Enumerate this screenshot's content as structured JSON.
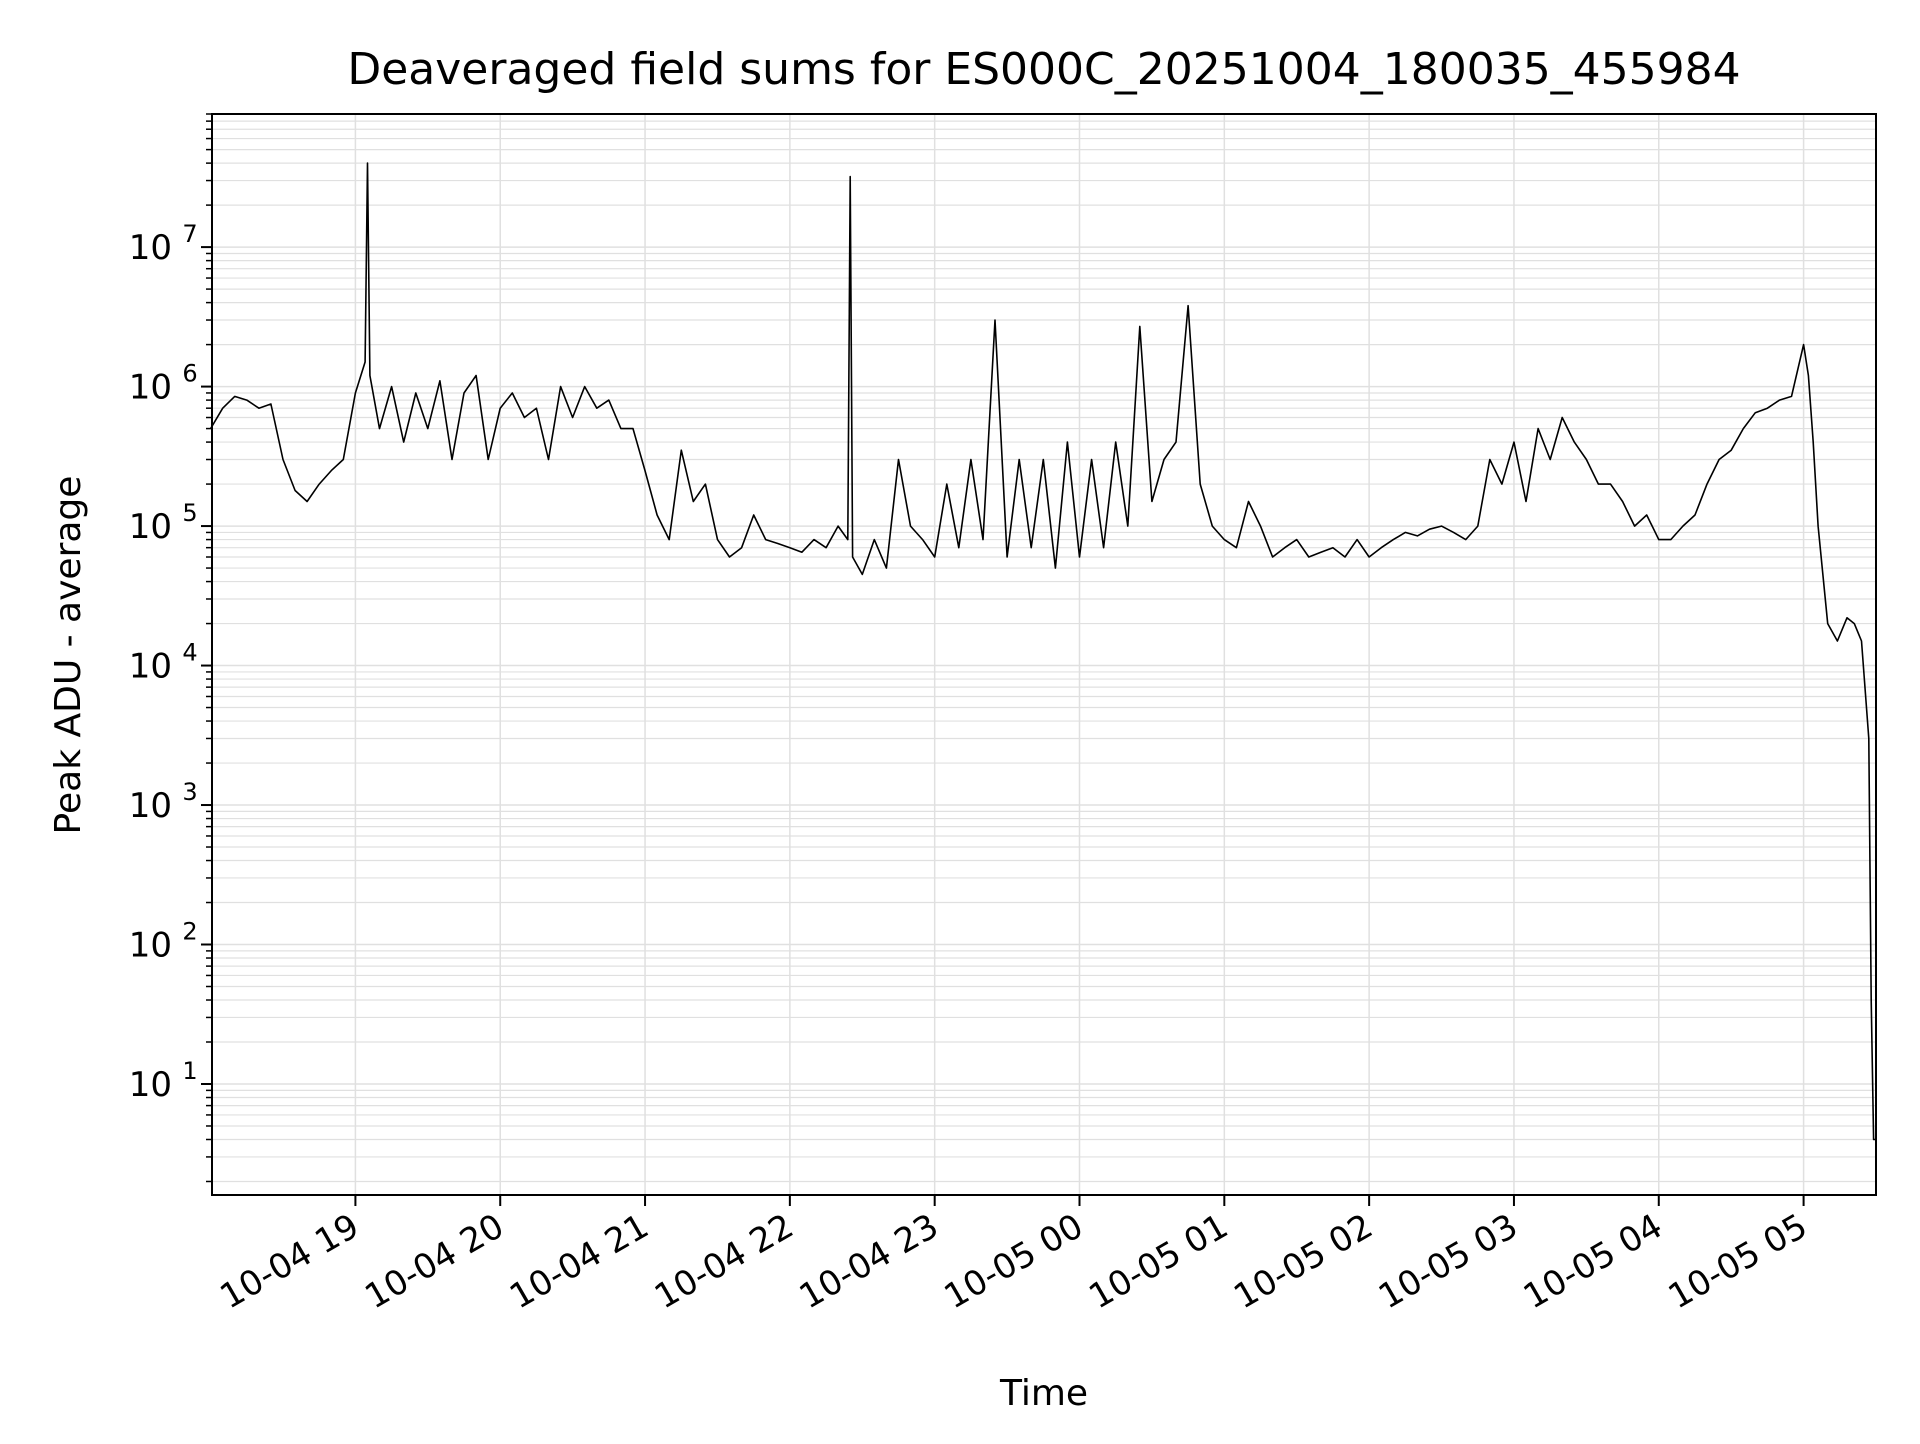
{
  "chart_data": {
    "type": "line",
    "title": "Deaveraged field sums for ES000C_20251004_180035_455984",
    "xlabel": "Time",
    "ylabel": "Peak ADU - average",
    "yscale": "log",
    "grid": true,
    "legend": "none",
    "xlim": [
      "2025-10-04 18:00:35",
      "2025-10-05 05:30:00"
    ],
    "ylim": [
      1.6,
      90000000
    ],
    "x_ticks": [
      {
        "t": "2025-10-04 19:00",
        "label": "10-04 19"
      },
      {
        "t": "2025-10-04 20:00",
        "label": "10-04 20"
      },
      {
        "t": "2025-10-04 21:00",
        "label": "10-04 21"
      },
      {
        "t": "2025-10-04 22:00",
        "label": "10-04 22"
      },
      {
        "t": "2025-10-04 23:00",
        "label": "10-04 23"
      },
      {
        "t": "2025-10-05 00:00",
        "label": "10-05 00"
      },
      {
        "t": "2025-10-05 01:00",
        "label": "10-05 01"
      },
      {
        "t": "2025-10-05 02:00",
        "label": "10-05 02"
      },
      {
        "t": "2025-10-05 03:00",
        "label": "10-05 03"
      },
      {
        "t": "2025-10-05 04:00",
        "label": "10-05 04"
      },
      {
        "t": "2025-10-05 05:00",
        "label": "10-05 05"
      }
    ],
    "y_ticks": [
      {
        "value": 10,
        "base": "10",
        "exp": "1"
      },
      {
        "value": 100,
        "base": "10",
        "exp": "2"
      },
      {
        "value": 1000,
        "base": "10",
        "exp": "3"
      },
      {
        "value": 10000,
        "base": "10",
        "exp": "4"
      },
      {
        "value": 100000,
        "base": "10",
        "exp": "5"
      },
      {
        "value": 1000000,
        "base": "10",
        "exp": "6"
      },
      {
        "value": 10000000,
        "base": "10",
        "exp": "7"
      }
    ],
    "line_color": "#000000",
    "grid_color": "#e0e0e0",
    "series": [
      {
        "x": [
          "2025-10-04 18:00",
          "2025-10-04 18:05",
          "2025-10-04 18:10",
          "2025-10-04 18:15",
          "2025-10-04 18:20",
          "2025-10-04 18:25",
          "2025-10-04 18:30",
          "2025-10-04 18:35",
          "2025-10-04 18:40",
          "2025-10-04 18:45",
          "2025-10-04 18:50",
          "2025-10-04 18:55",
          "2025-10-04 19:00",
          "2025-10-04 19:04",
          "2025-10-04 19:05",
          "2025-10-04 19:06",
          "2025-10-04 19:10",
          "2025-10-04 19:15",
          "2025-10-04 19:20",
          "2025-10-04 19:25",
          "2025-10-04 19:30",
          "2025-10-04 19:35",
          "2025-10-04 19:40",
          "2025-10-04 19:45",
          "2025-10-04 19:50",
          "2025-10-04 19:55",
          "2025-10-04 20:00",
          "2025-10-04 20:05",
          "2025-10-04 20:10",
          "2025-10-04 20:15",
          "2025-10-04 20:20",
          "2025-10-04 20:25",
          "2025-10-04 20:30",
          "2025-10-04 20:35",
          "2025-10-04 20:40",
          "2025-10-04 20:45",
          "2025-10-04 20:50",
          "2025-10-04 20:55",
          "2025-10-04 21:00",
          "2025-10-04 21:05",
          "2025-10-04 21:10",
          "2025-10-04 21:15",
          "2025-10-04 21:20",
          "2025-10-04 21:25",
          "2025-10-04 21:30",
          "2025-10-04 21:35",
          "2025-10-04 21:40",
          "2025-10-04 21:45",
          "2025-10-04 21:50",
          "2025-10-04 21:55",
          "2025-10-04 22:00",
          "2025-10-04 22:05",
          "2025-10-04 22:10",
          "2025-10-04 22:15",
          "2025-10-04 22:20",
          "2025-10-04 22:24",
          "2025-10-04 22:25",
          "2025-10-04 22:26",
          "2025-10-04 22:30",
          "2025-10-04 22:35",
          "2025-10-04 22:40",
          "2025-10-04 22:45",
          "2025-10-04 22:50",
          "2025-10-04 22:55",
          "2025-10-04 23:00",
          "2025-10-04 23:05",
          "2025-10-04 23:10",
          "2025-10-04 23:15",
          "2025-10-04 23:20",
          "2025-10-04 23:25",
          "2025-10-04 23:30",
          "2025-10-04 23:35",
          "2025-10-04 23:40",
          "2025-10-04 23:45",
          "2025-10-04 23:50",
          "2025-10-04 23:55",
          "2025-10-05 00:00",
          "2025-10-05 00:05",
          "2025-10-05 00:10",
          "2025-10-05 00:15",
          "2025-10-05 00:20",
          "2025-10-05 00:25",
          "2025-10-05 00:30",
          "2025-10-05 00:35",
          "2025-10-05 00:40",
          "2025-10-05 00:45",
          "2025-10-05 00:50",
          "2025-10-05 00:55",
          "2025-10-05 01:00",
          "2025-10-05 01:05",
          "2025-10-05 01:10",
          "2025-10-05 01:15",
          "2025-10-05 01:20",
          "2025-10-05 01:25",
          "2025-10-05 01:30",
          "2025-10-05 01:35",
          "2025-10-05 01:40",
          "2025-10-05 01:45",
          "2025-10-05 01:50",
          "2025-10-05 01:55",
          "2025-10-05 02:00",
          "2025-10-05 02:05",
          "2025-10-05 02:10",
          "2025-10-05 02:15",
          "2025-10-05 02:20",
          "2025-10-05 02:25",
          "2025-10-05 02:30",
          "2025-10-05 02:35",
          "2025-10-05 02:40",
          "2025-10-05 02:45",
          "2025-10-05 02:50",
          "2025-10-05 02:55",
          "2025-10-05 03:00",
          "2025-10-05 03:05",
          "2025-10-05 03:10",
          "2025-10-05 03:15",
          "2025-10-05 03:20",
          "2025-10-05 03:25",
          "2025-10-05 03:30",
          "2025-10-05 03:35",
          "2025-10-05 03:40",
          "2025-10-05 03:45",
          "2025-10-05 03:50",
          "2025-10-05 03:55",
          "2025-10-05 04:00",
          "2025-10-05 04:05",
          "2025-10-05 04:10",
          "2025-10-05 04:15",
          "2025-10-05 04:20",
          "2025-10-05 04:25",
          "2025-10-05 04:30",
          "2025-10-05 04:35",
          "2025-10-05 04:40",
          "2025-10-05 04:45",
          "2025-10-05 04:50",
          "2025-10-05 04:55",
          "2025-10-05 05:00",
          "2025-10-05 05:02",
          "2025-10-05 05:04",
          "2025-10-05 05:06",
          "2025-10-05 05:10",
          "2025-10-05 05:14",
          "2025-10-05 05:18",
          "2025-10-05 05:21",
          "2025-10-05 05:24",
          "2025-10-05 05:27",
          "2025-10-05 05:28",
          "2025-10-05 05:29",
          "2025-10-05 05:30"
        ],
        "y": [
          500000,
          700000,
          850000,
          800000,
          700000,
          750000,
          300000,
          180000,
          150000,
          200000,
          250000,
          300000,
          900000,
          1500000,
          40000000,
          1200000,
          500000,
          1000000,
          400000,
          900000,
          500000,
          1100000,
          300000,
          900000,
          1200000,
          300000,
          700000,
          900000,
          600000,
          700000,
          300000,
          1000000,
          600000,
          1000000,
          700000,
          800000,
          500000,
          500000,
          250000,
          120000,
          80000,
          350000,
          150000,
          200000,
          80000,
          60000,
          70000,
          120000,
          80000,
          75000,
          70000,
          65000,
          80000,
          70000,
          100000,
          80000,
          32000000,
          60000,
          45000,
          80000,
          50000,
          300000,
          100000,
          80000,
          60000,
          200000,
          70000,
          300000,
          80000,
          3000000,
          60000,
          300000,
          70000,
          300000,
          50000,
          400000,
          60000,
          300000,
          70000,
          400000,
          100000,
          2700000,
          150000,
          300000,
          400000,
          3800000,
          200000,
          100000,
          80000,
          70000,
          150000,
          100000,
          60000,
          70000,
          80000,
          60000,
          65000,
          70000,
          60000,
          80000,
          60000,
          70000,
          80000,
          90000,
          85000,
          95000,
          100000,
          90000,
          80000,
          100000,
          300000,
          200000,
          400000,
          150000,
          500000,
          300000,
          600000,
          400000,
          300000,
          200000,
          200000,
          150000,
          100000,
          120000,
          80000,
          80000,
          100000,
          120000,
          200000,
          300000,
          350000,
          500000,
          650000,
          700000,
          800000,
          850000,
          2000000,
          1200000,
          400000,
          100000,
          20000,
          15000,
          22000,
          20000,
          15000,
          3000,
          40,
          4,
          4
        ]
      }
    ]
  }
}
